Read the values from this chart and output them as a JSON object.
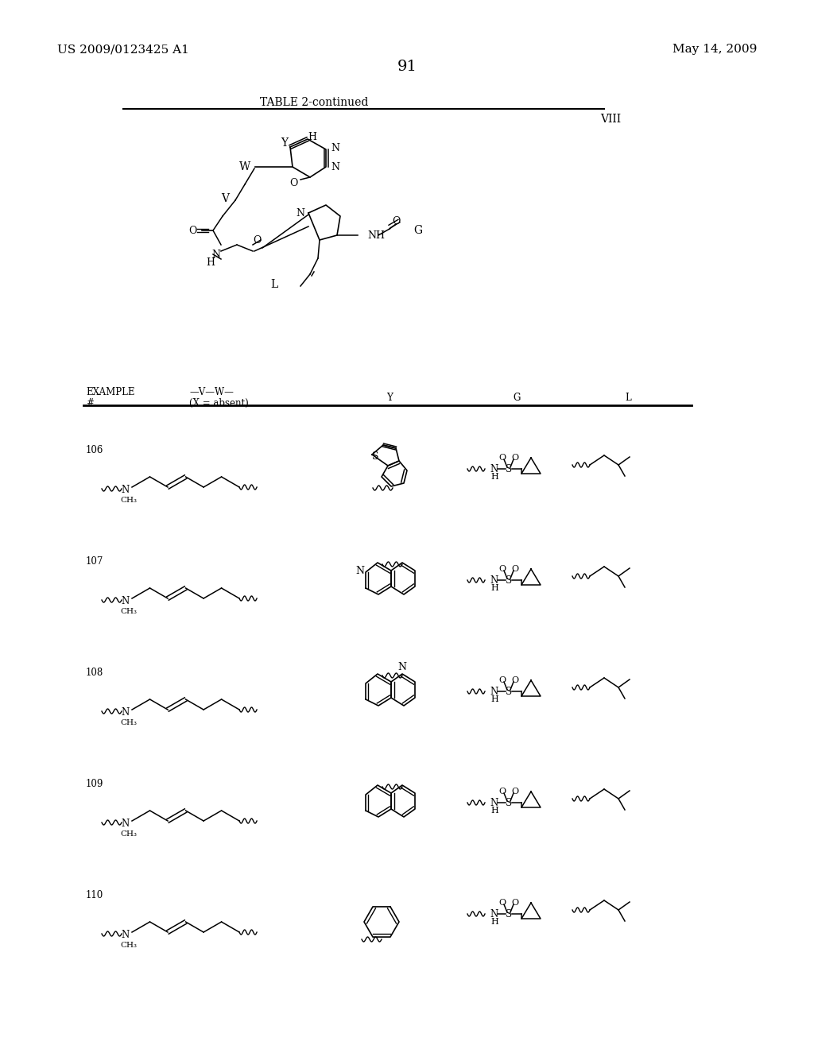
{
  "bg_color": "#ffffff",
  "header_left": "US 2009/0123425 A1",
  "header_right": "May 14, 2009",
  "page_number": "91",
  "table_title": "TABLE 2-continued",
  "roman_numeral": "VIII"
}
